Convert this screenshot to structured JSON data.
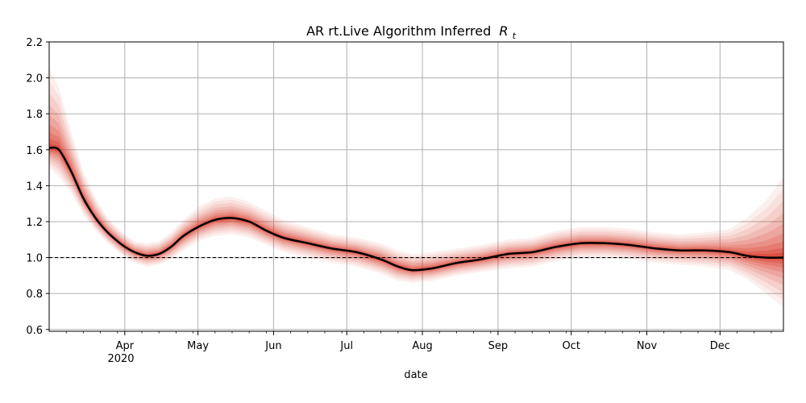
{
  "chart_data": {
    "type": "line",
    "title": "AR rt.Live Algorithm Inferred",
    "title_math": "R",
    "title_math_sub": "t",
    "xlabel": "date",
    "ylabel": "",
    "year_label": "2020",
    "x_range": [
      "2020-03-01",
      "2020-12-27"
    ],
    "ylim": [
      0.59,
      2.2
    ],
    "yticks": [
      "0.6",
      "0.8",
      "1.0",
      "1.2",
      "1.4",
      "1.6",
      "1.8",
      "2.0",
      "2.2"
    ],
    "xticks": [
      {
        "date": "2020-04-01",
        "label": "Apr"
      },
      {
        "date": "2020-05-01",
        "label": "May"
      },
      {
        "date": "2020-06-01",
        "label": "Jun"
      },
      {
        "date": "2020-07-01",
        "label": "Jul"
      },
      {
        "date": "2020-08-01",
        "label": "Aug"
      },
      {
        "date": "2020-09-01",
        "label": "Sep"
      },
      {
        "date": "2020-10-01",
        "label": "Oct"
      },
      {
        "date": "2020-11-01",
        "label": "Nov"
      },
      {
        "date": "2020-12-01",
        "label": "Dec"
      }
    ],
    "grid": true,
    "reference_line": 1.0,
    "line_color": "#000000",
    "band_color": "#d7301f",
    "reference_color": "#000000",
    "series": [
      {
        "values": [
          {
            "x": "2020-03-01",
            "y": 1.61,
            "lo": 1.5,
            "hi": 2.05
          },
          {
            "x": "2020-03-05",
            "y": 1.6,
            "lo": 1.45,
            "hi": 1.95
          },
          {
            "x": "2020-03-10",
            "y": 1.48,
            "lo": 1.36,
            "hi": 1.7
          },
          {
            "x": "2020-03-15",
            "y": 1.33,
            "lo": 1.24,
            "hi": 1.48
          },
          {
            "x": "2020-03-20",
            "y": 1.22,
            "lo": 1.15,
            "hi": 1.33
          },
          {
            "x": "2020-03-25",
            "y": 1.14,
            "lo": 1.08,
            "hi": 1.22
          },
          {
            "x": "2020-03-31",
            "y": 1.07,
            "lo": 1.01,
            "hi": 1.14
          },
          {
            "x": "2020-04-05",
            "y": 1.03,
            "lo": 0.97,
            "hi": 1.09
          },
          {
            "x": "2020-04-10",
            "y": 1.01,
            "lo": 0.95,
            "hi": 1.08
          },
          {
            "x": "2020-04-15",
            "y": 1.02,
            "lo": 0.96,
            "hi": 1.09
          },
          {
            "x": "2020-04-20",
            "y": 1.06,
            "lo": 0.99,
            "hi": 1.14
          },
          {
            "x": "2020-04-25",
            "y": 1.12,
            "lo": 1.04,
            "hi": 1.21
          },
          {
            "x": "2020-05-01",
            "y": 1.17,
            "lo": 1.09,
            "hi": 1.28
          },
          {
            "x": "2020-05-08",
            "y": 1.21,
            "lo": 1.12,
            "hi": 1.33
          },
          {
            "x": "2020-05-15",
            "y": 1.22,
            "lo": 1.13,
            "hi": 1.34
          },
          {
            "x": "2020-05-22",
            "y": 1.2,
            "lo": 1.11,
            "hi": 1.31
          },
          {
            "x": "2020-05-29",
            "y": 1.15,
            "lo": 1.07,
            "hi": 1.26
          },
          {
            "x": "2020-06-05",
            "y": 1.11,
            "lo": 1.03,
            "hi": 1.21
          },
          {
            "x": "2020-06-15",
            "y": 1.08,
            "lo": 1.0,
            "hi": 1.17
          },
          {
            "x": "2020-06-25",
            "y": 1.05,
            "lo": 0.97,
            "hi": 1.13
          },
          {
            "x": "2020-07-05",
            "y": 1.03,
            "lo": 0.95,
            "hi": 1.11
          },
          {
            "x": "2020-07-15",
            "y": 0.99,
            "lo": 0.91,
            "hi": 1.08
          },
          {
            "x": "2020-07-22",
            "y": 0.95,
            "lo": 0.87,
            "hi": 1.04
          },
          {
            "x": "2020-07-28",
            "y": 0.93,
            "lo": 0.86,
            "hi": 1.02
          },
          {
            "x": "2020-08-05",
            "y": 0.94,
            "lo": 0.87,
            "hi": 1.03
          },
          {
            "x": "2020-08-15",
            "y": 0.97,
            "lo": 0.9,
            "hi": 1.05
          },
          {
            "x": "2020-08-25",
            "y": 0.99,
            "lo": 0.92,
            "hi": 1.07
          },
          {
            "x": "2020-09-05",
            "y": 1.02,
            "lo": 0.94,
            "hi": 1.1
          },
          {
            "x": "2020-09-15",
            "y": 1.03,
            "lo": 0.95,
            "hi": 1.11
          },
          {
            "x": "2020-09-25",
            "y": 1.06,
            "lo": 0.98,
            "hi": 1.15
          },
          {
            "x": "2020-10-05",
            "y": 1.08,
            "lo": 1.0,
            "hi": 1.17
          },
          {
            "x": "2020-10-15",
            "y": 1.08,
            "lo": 1.0,
            "hi": 1.17
          },
          {
            "x": "2020-10-25",
            "y": 1.07,
            "lo": 0.99,
            "hi": 1.16
          },
          {
            "x": "2020-11-05",
            "y": 1.05,
            "lo": 0.97,
            "hi": 1.14
          },
          {
            "x": "2020-11-15",
            "y": 1.04,
            "lo": 0.96,
            "hi": 1.13
          },
          {
            "x": "2020-11-25",
            "y": 1.04,
            "lo": 0.95,
            "hi": 1.14
          },
          {
            "x": "2020-12-05",
            "y": 1.03,
            "lo": 0.93,
            "hi": 1.16
          },
          {
            "x": "2020-12-12",
            "y": 1.01,
            "lo": 0.88,
            "hi": 1.22
          },
          {
            "x": "2020-12-20",
            "y": 1.0,
            "lo": 0.8,
            "hi": 1.32
          },
          {
            "x": "2020-12-27",
            "y": 1.0,
            "lo": 0.72,
            "hi": 1.45
          }
        ]
      }
    ]
  }
}
